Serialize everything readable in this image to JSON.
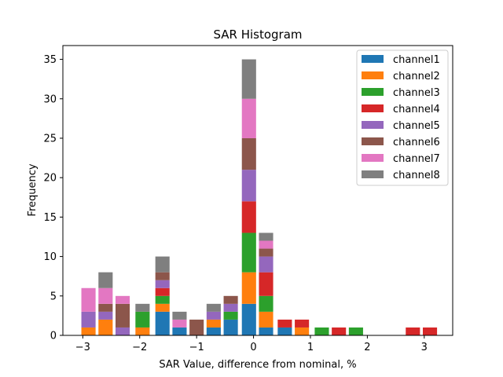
{
  "chart_data": {
    "type": "bar",
    "stacked": true,
    "title": "SAR Histogram",
    "xlabel": "SAR Value, difference from nominal, %",
    "ylabel": "Frequency",
    "xlim": [
      -3.35,
      3.5
    ],
    "ylim": [
      0,
      36.75
    ],
    "bar_width": 0.25,
    "xticks": [
      -3,
      -2,
      -1,
      0,
      1,
      2,
      3
    ],
    "xtick_labels": [
      "−3",
      "−2",
      "−1",
      "0",
      "1",
      "2",
      "3"
    ],
    "yticks": [
      0,
      5,
      10,
      15,
      20,
      25,
      30,
      35
    ],
    "ytick_labels": [
      "0",
      "5",
      "10",
      "15",
      "20",
      "25",
      "30",
      "35"
    ],
    "grid": false,
    "legend_position": "top-right",
    "x": [
      -2.9,
      -2.6,
      -2.3,
      -1.95,
      -1.6,
      -1.3,
      -1.0,
      -0.7,
      -0.4,
      -0.08,
      0.22,
      0.55,
      0.85,
      1.2,
      1.5,
      1.8,
      2.8,
      3.1
    ],
    "series": [
      {
        "name": "channel1",
        "color": "#1f77b4",
        "values": [
          0,
          0,
          0,
          0,
          3,
          1,
          0,
          1,
          2,
          4,
          1,
          1,
          0,
          0,
          0,
          0,
          0,
          0
        ]
      },
      {
        "name": "channel2",
        "color": "#ff7f0e",
        "values": [
          1,
          2,
          0,
          1,
          1,
          0,
          0,
          1,
          0,
          4,
          2,
          0,
          1,
          0,
          0,
          0,
          0,
          0
        ]
      },
      {
        "name": "channel3",
        "color": "#2ca02c",
        "values": [
          0,
          0,
          0,
          2,
          1,
          0,
          0,
          0,
          1,
          5,
          2,
          0,
          0,
          1,
          0,
          1,
          0,
          0
        ]
      },
      {
        "name": "channel4",
        "color": "#d62728",
        "values": [
          0,
          0,
          0,
          0,
          1,
          0,
          0,
          0,
          0,
          4,
          3,
          1,
          1,
          0,
          1,
          0,
          1,
          1
        ]
      },
      {
        "name": "channel5",
        "color": "#9467bd",
        "values": [
          2,
          1,
          1,
          0,
          1,
          0,
          0,
          1,
          1,
          4,
          2,
          0,
          0,
          0,
          0,
          0,
          0,
          0
        ]
      },
      {
        "name": "channel6",
        "color": "#8c564b",
        "values": [
          0,
          1,
          3,
          0,
          1,
          0,
          2,
          0,
          1,
          4,
          1,
          0,
          0,
          0,
          0,
          0,
          0,
          0
        ]
      },
      {
        "name": "channel7",
        "color": "#e377c2",
        "values": [
          3,
          2,
          1,
          0,
          0,
          1,
          0,
          0,
          0,
          5,
          1,
          0,
          0,
          0,
          0,
          0,
          0,
          0
        ]
      },
      {
        "name": "channel8",
        "color": "#7f7f7f",
        "values": [
          0,
          2,
          0,
          1,
          2,
          1,
          0,
          1,
          0,
          5,
          1,
          0,
          0,
          0,
          0,
          0,
          0,
          0
        ]
      }
    ]
  }
}
